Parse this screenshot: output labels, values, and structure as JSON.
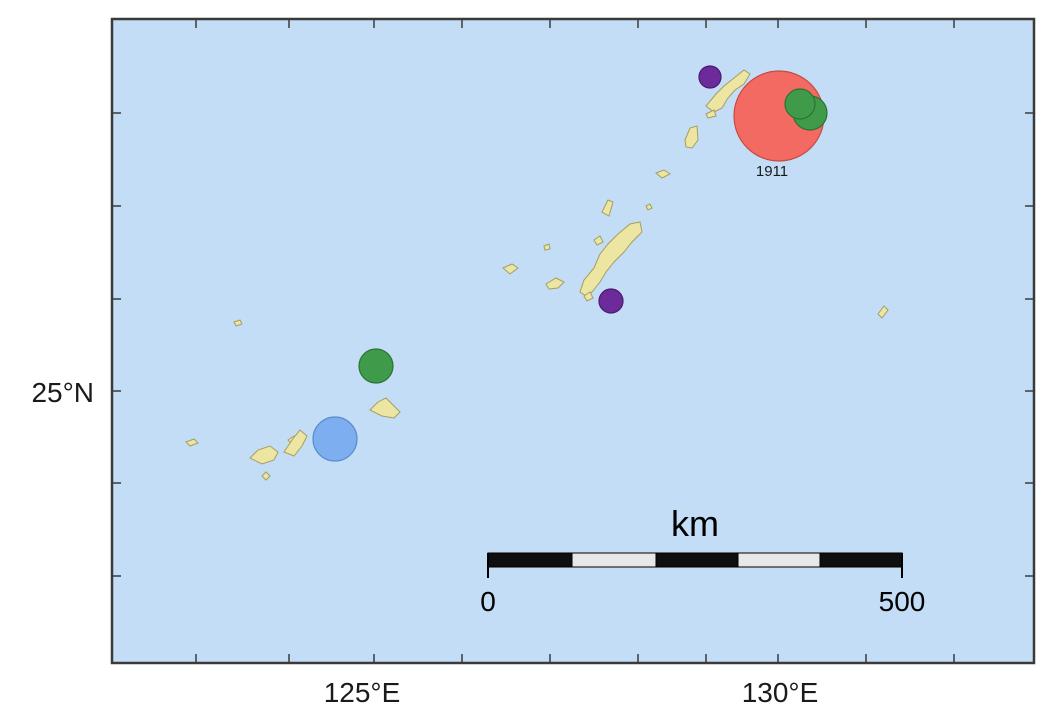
{
  "map": {
    "axis_labels": {
      "lat_25": "25°N",
      "lon_125": "125°E",
      "lon_130": "130°E"
    },
    "scale_bar": {
      "unit": "km",
      "label_start": "0",
      "label_end": "500"
    },
    "annotations": {
      "quake_1911": "1911"
    },
    "colors": {
      "sea": "#c2ddf5",
      "land": "#ece6a2",
      "frame": "#3a3a3a",
      "quake_red": "#f26a61",
      "quake_green": "#3f9b4a",
      "quake_purple": "#6c2a9a",
      "quake_blue": "#7daef0"
    }
  }
}
